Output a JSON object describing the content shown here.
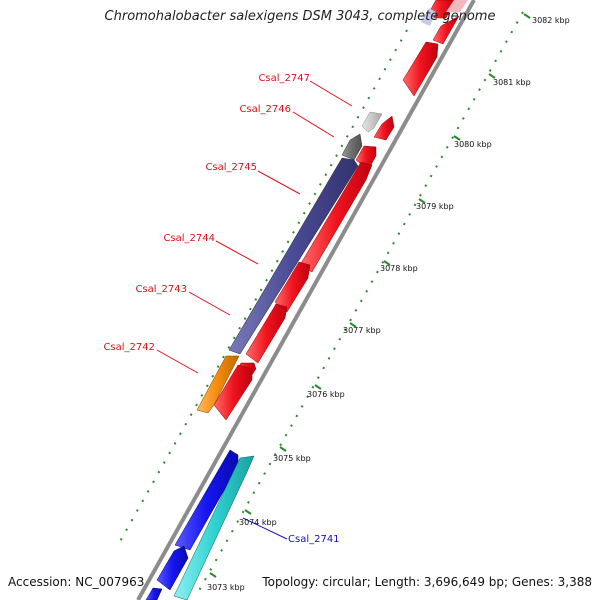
{
  "title": "Chromohalobacter salexigens DSM 3043, complete genome",
  "accession_text": "Accession: NC_007963",
  "summary_text": "Topology: circular; Length: 3,696,649 bp; Genes: 3,388",
  "scale_ticks": [
    {
      "kbp": 3082,
      "label": "3082 kbp"
    },
    {
      "kbp": 3081,
      "label": "3081 kbp"
    },
    {
      "kbp": 3080,
      "label": "3080 kbp"
    },
    {
      "kbp": 3079,
      "label": "3079 kbp"
    },
    {
      "kbp": 3078,
      "label": "3078 kbp"
    },
    {
      "kbp": 3077,
      "label": "3077 kbp"
    },
    {
      "kbp": 3076,
      "label": "3076 kbp"
    },
    {
      "kbp": 3075,
      "label": "3075 kbp"
    },
    {
      "kbp": 3074,
      "label": "3074 kbp"
    },
    {
      "kbp": 3073,
      "label": "3073 kbp"
    }
  ],
  "gene_labels": [
    {
      "id": "Csal_2747",
      "color": "#e0101a"
    },
    {
      "id": "Csal_2746",
      "color": "#e0101a"
    },
    {
      "id": "Csal_2745",
      "color": "#e0101a"
    },
    {
      "id": "Csal_2744",
      "color": "#e0101a"
    },
    {
      "id": "Csal_2743",
      "color": "#e0101a"
    },
    {
      "id": "Csal_2742",
      "color": "#e0101a"
    },
    {
      "id": "Csal_2741",
      "color": "#1010c0"
    }
  ],
  "colors": {
    "forward_cds": "#f0141e",
    "reverse_cds_slate": "#4a4a96",
    "reverse_cds_blue": "#1515f0",
    "cyan_cds": "#30d2d2",
    "orange_cds": "#f58a0a",
    "grey_cds": "#6e6e6e",
    "light_grey_cds": "#c8c8c8",
    "backbone": "#8c8c8c",
    "gc_dots": "#2a8a2a"
  }
}
